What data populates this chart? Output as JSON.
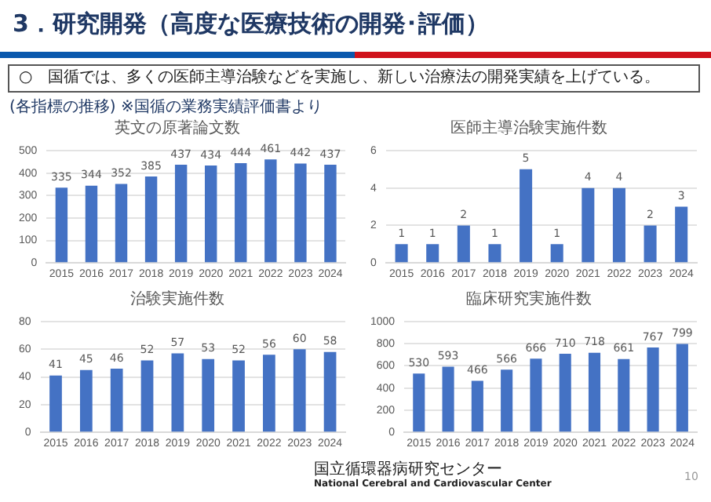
{
  "chart_data": [
    {
      "type": "bar",
      "title": "英文の原著論文数",
      "categories": [
        "2015",
        "2016",
        "2017",
        "2018",
        "2019",
        "2020",
        "2021",
        "2022",
        "2023",
        "2024"
      ],
      "values": [
        335,
        344,
        352,
        385,
        437,
        434,
        444,
        461,
        442,
        437
      ],
      "color": "#4472c4",
      "ylim": [
        0,
        500
      ],
      "yticks": [
        0,
        100,
        200,
        300,
        400,
        500
      ],
      "grid": "y",
      "data_labels": true,
      "annotations": [
        "3．研究開発（高度な医療技術の開発･評価）",
        "○　国循では、多くの医師主導治験などを実施し、新しい治療法の開発実績を上げている。",
        "(各指標の推移) ※国循の業務実績評価書より",
        "国立循環器病研究センター",
        "National Cerebral and Cardiovascular Center",
        "10"
      ]
    },
    {
      "type": "bar",
      "title": "医師主導治験実施件数",
      "categories": [
        "2015",
        "2016",
        "2017",
        "2018",
        "2019",
        "2020",
        "2021",
        "2022",
        "2023",
        "2024"
      ],
      "values": [
        1,
        1,
        2,
        1,
        5,
        1,
        4,
        4,
        2,
        3
      ],
      "color": "#4472c4",
      "ylim": [
        0,
        6
      ],
      "yticks": [
        0,
        2,
        4,
        6
      ],
      "grid": "y",
      "data_labels": true
    },
    {
      "type": "bar",
      "title": "治験実施件数",
      "categories": [
        "2015",
        "2016",
        "2017",
        "2018",
        "2019",
        "2020",
        "2021",
        "2022",
        "2023",
        "2024"
      ],
      "values": [
        41,
        45,
        46,
        52,
        57,
        53,
        52,
        56,
        60,
        58
      ],
      "color": "#4472c4",
      "ylim": [
        0,
        80
      ],
      "yticks": [
        0,
        20,
        40,
        60,
        80
      ],
      "grid": "y",
      "data_labels": true
    },
    {
      "type": "bar",
      "title": "臨床研究実施件数",
      "categories": [
        "2015",
        "2016",
        "2017",
        "2018",
        "2019",
        "2020",
        "2021",
        "2022",
        "2023",
        "2024"
      ],
      "values": [
        530,
        593,
        466,
        566,
        666,
        710,
        718,
        661,
        767,
        799
      ],
      "color": "#4472c4",
      "ylim": [
        0,
        1000
      ],
      "yticks": [
        0,
        200,
        400,
        600,
        800,
        1000
      ],
      "grid": "y",
      "data_labels": true
    }
  ]
}
